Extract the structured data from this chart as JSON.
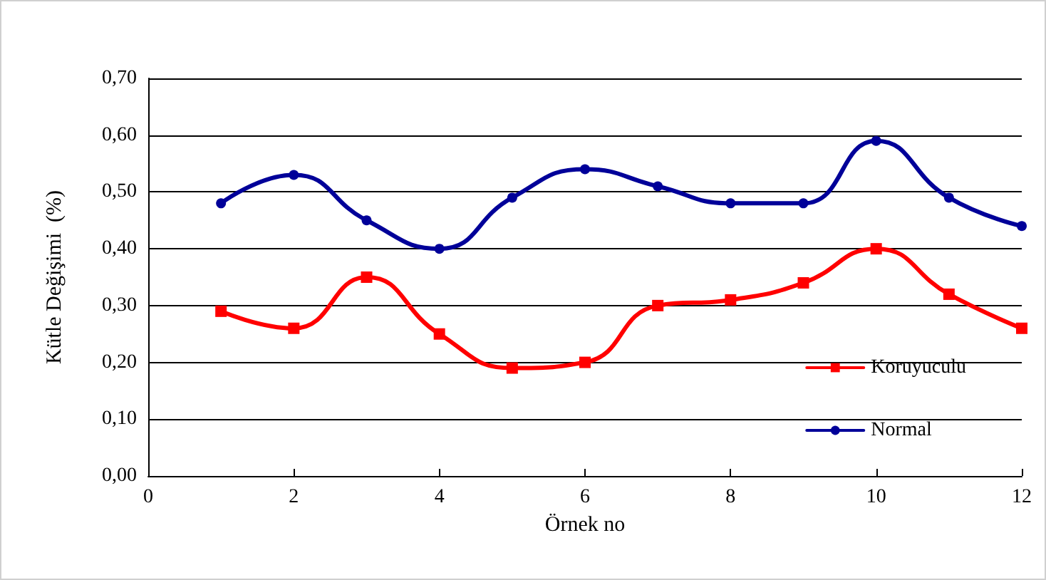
{
  "chart_data": {
    "type": "line",
    "xlabel": "Örnek no",
    "ylabel": "Kütle Değişimi  (%)",
    "x": [
      1,
      2,
      3,
      4,
      5,
      6,
      7,
      8,
      9,
      10,
      11,
      12
    ],
    "series": [
      {
        "name": "Koruyuculu",
        "color": "#ff0000",
        "marker": "square",
        "values": [
          0.29,
          0.26,
          0.35,
          0.25,
          0.19,
          0.2,
          0.3,
          0.31,
          0.34,
          0.4,
          0.32,
          0.26
        ]
      },
      {
        "name": "Normal",
        "color": "#000099",
        "marker": "circle",
        "values": [
          0.48,
          0.53,
          0.45,
          0.4,
          0.49,
          0.54,
          0.51,
          0.48,
          0.48,
          0.59,
          0.49,
          0.44
        ]
      }
    ],
    "xlim": [
      0,
      12
    ],
    "xticks": [
      0,
      2,
      4,
      6,
      8,
      10,
      12
    ],
    "ylim": [
      0,
      0.7
    ],
    "yticks": [
      {
        "value": 0,
        "label": "0,00"
      },
      {
        "value": 0.1,
        "label": "0,10"
      },
      {
        "value": 0.2,
        "label": "0,20"
      },
      {
        "value": 0.3,
        "label": "0,30"
      },
      {
        "value": 0.4,
        "label": "0,40"
      },
      {
        "value": 0.5,
        "label": "0,50"
      },
      {
        "value": 0.6,
        "label": "0,60"
      },
      {
        "value": 0.7,
        "label": "0,70"
      }
    ],
    "grid": "y",
    "legend": "right",
    "line_style": "solid"
  }
}
